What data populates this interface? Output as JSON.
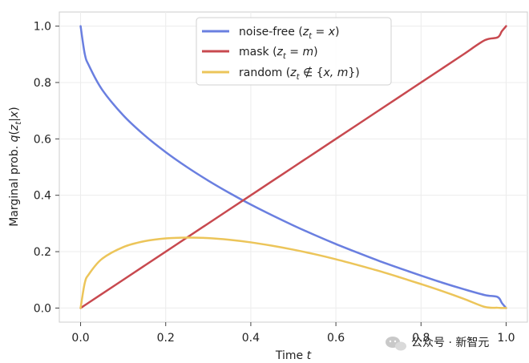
{
  "chart_data": {
    "type": "line",
    "title": "",
    "xlabel": "Time t",
    "ylabel": "Marginal prob. q(z_t|x)",
    "xlim": [
      -0.05,
      1.05
    ],
    "ylim": [
      -0.05,
      1.05
    ],
    "grid": true,
    "legend_position": "top-center",
    "x_ticks": [
      0.0,
      0.2,
      0.4,
      0.6,
      0.8,
      1.0
    ],
    "y_ticks": [
      0.0,
      0.2,
      0.4,
      0.6,
      0.8,
      1.0
    ],
    "x_tick_labels": [
      "0.0",
      "0.2",
      "0.4",
      "0.6",
      "0.8",
      "1.0"
    ],
    "y_tick_labels": [
      "0.0",
      "0.2",
      "0.4",
      "0.6",
      "0.8",
      "1.0"
    ],
    "x": [
      0.0,
      0.01,
      0.02,
      0.05,
      0.1,
      0.15,
      0.2,
      0.25,
      0.3,
      0.35,
      0.4,
      0.45,
      0.5,
      0.55,
      0.6,
      0.65,
      0.7,
      0.75,
      0.8,
      0.85,
      0.9,
      0.95,
      0.98,
      0.99,
      1.0
    ],
    "series": [
      {
        "name": "noise-free (z_t = x)",
        "color": "#6a7fe0",
        "values": [
          1.0,
          0.9,
          0.859,
          0.776,
          0.684,
          0.613,
          0.553,
          0.5,
          0.452,
          0.408,
          0.367,
          0.329,
          0.293,
          0.259,
          0.227,
          0.197,
          0.168,
          0.141,
          0.115,
          0.09,
          0.067,
          0.046,
          0.039,
          0.018,
          0.0
        ]
      },
      {
        "name": "mask (z_t = m)",
        "color": "#c8494f",
        "values": [
          0.0,
          0.01,
          0.02,
          0.05,
          0.1,
          0.15,
          0.2,
          0.25,
          0.3,
          0.35,
          0.4,
          0.45,
          0.5,
          0.55,
          0.6,
          0.65,
          0.7,
          0.75,
          0.8,
          0.85,
          0.9,
          0.95,
          0.96,
          0.982,
          1.0
        ]
      },
      {
        "name": "random (z_t ∉ {x, m})",
        "color": "#ecc55a",
        "values": [
          0.0,
          0.09,
          0.121,
          0.174,
          0.216,
          0.237,
          0.247,
          0.25,
          0.248,
          0.242,
          0.233,
          0.221,
          0.207,
          0.191,
          0.173,
          0.153,
          0.132,
          0.109,
          0.085,
          0.06,
          0.033,
          0.004,
          0.001,
          0.0,
          0.0
        ]
      }
    ],
    "legend_labels": {
      "noise_free": {
        "prefix": "noise-free (",
        "var": "z",
        "sub": "t",
        "rel": " = ",
        "rhs": "x",
        "suffix": ")"
      },
      "mask": {
        "prefix": "mask (",
        "var": "z",
        "sub": "t",
        "rel": " = ",
        "rhs": "m",
        "suffix": ")"
      },
      "random": {
        "prefix": "random (",
        "var": "z",
        "sub": "t",
        "rel": " ∉ {",
        "rhs": "x, m",
        "suffix": "})"
      }
    },
    "axis_titles": {
      "x": {
        "text": "Time ",
        "var": "t"
      },
      "y": {
        "text": "Marginal prob. ",
        "func": "q",
        "open": "(",
        "var": "z",
        "sub": "t",
        "given": "|",
        "cond": "x",
        "close": ")"
      }
    }
  },
  "watermark": {
    "text": "公众号 · 新智元",
    "icon": "wechat-icon"
  }
}
